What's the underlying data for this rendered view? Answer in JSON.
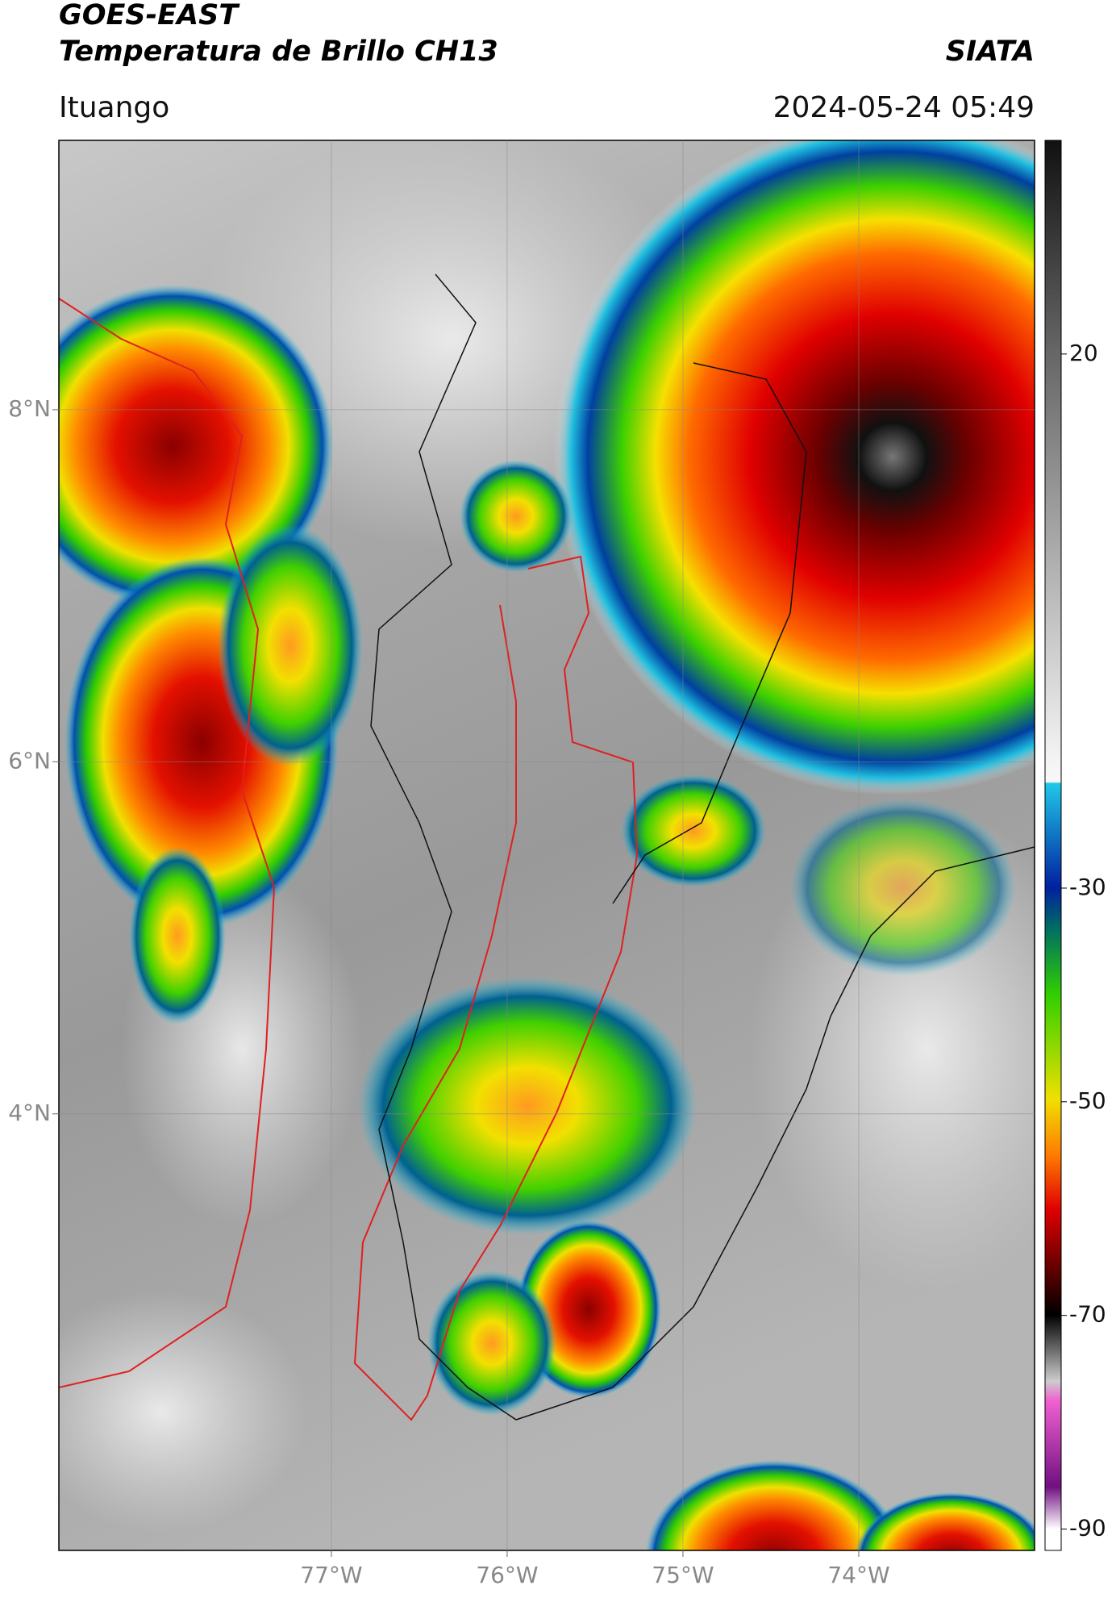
{
  "chart_data": {
    "type": "map",
    "title": "GOES-EAST",
    "subtitle": "Temperatura de Brillo CH13",
    "source": "SIATA",
    "location": "Ituango",
    "datetime": "2024-05-24 05:49",
    "xlim": [
      -78.55,
      -73.0
    ],
    "ylim": [
      1.52,
      9.53
    ],
    "xticks": [
      {
        "value": -77,
        "label": "77°W"
      },
      {
        "value": -76,
        "label": "76°W"
      },
      {
        "value": -75,
        "label": "75°W"
      },
      {
        "value": -74,
        "label": "74°W"
      }
    ],
    "yticks": [
      {
        "value": 8,
        "label": "8°N"
      },
      {
        "value": 6,
        "label": "6°N"
      },
      {
        "value": 4,
        "label": "4°N"
      }
    ],
    "grid": true,
    "colorbar": {
      "lim": [
        -92,
        40
      ],
      "ticks": [
        20,
        -30,
        -50,
        -70,
        -90
      ]
    }
  }
}
